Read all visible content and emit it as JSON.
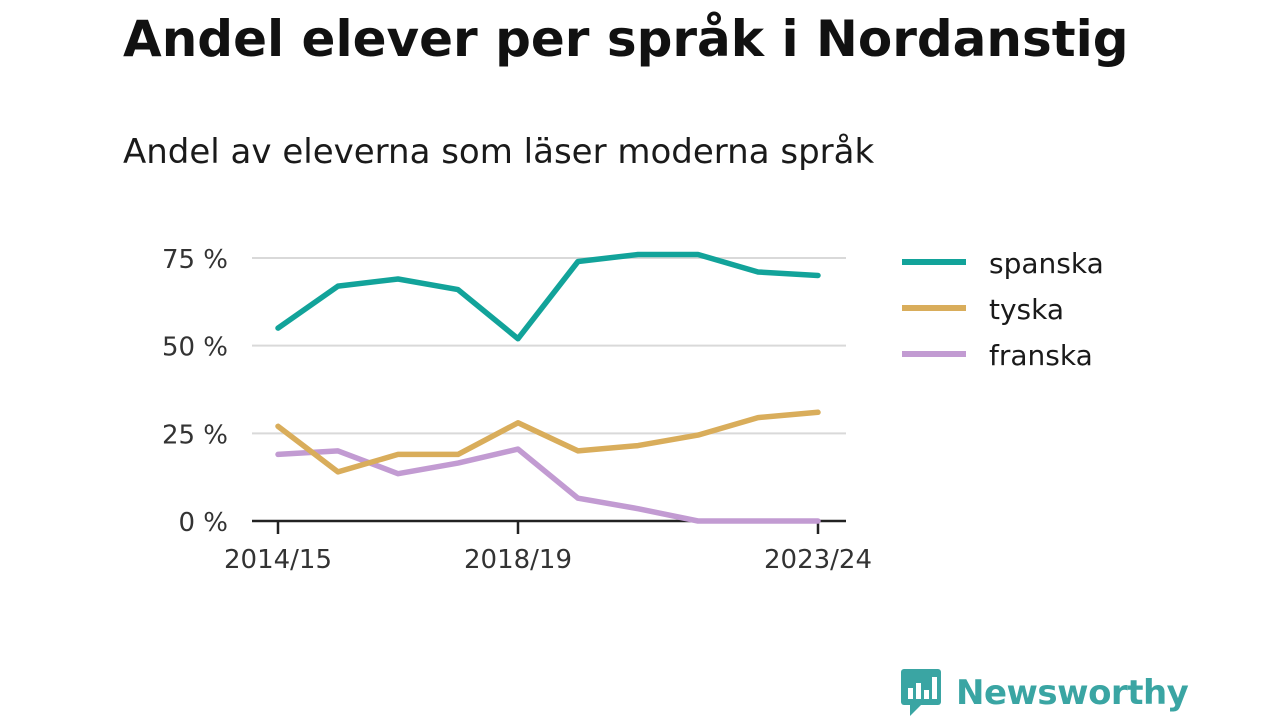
{
  "title": "Andel elever per språk i Nordanstig",
  "subtitle": "Andel av eleverna som läser moderna språk",
  "brand": {
    "name": "Newsworthy",
    "logo_icon": "bar-chart-speech-bubble-icon"
  },
  "colors": {
    "spanska": "#12a39a",
    "tyska": "#d9ad5b",
    "franska": "#c29bd2",
    "grid": "#d9d9d9",
    "axis": "#222222",
    "brand": "#3aa5a3"
  },
  "chart_data": {
    "type": "line",
    "x": [
      "2014/15",
      "2015/16",
      "2016/17",
      "2017/18",
      "2018/19",
      "2019/20",
      "2020/21",
      "2021/22",
      "2022/23",
      "2023/24"
    ],
    "x_tick_labels": [
      "2014/15",
      "2018/19",
      "2023/24"
    ],
    "y_tick_labels": [
      "0 %",
      "25 %",
      "50 %",
      "75 %"
    ],
    "y_ticks": [
      0,
      25,
      50,
      75
    ],
    "ylim": [
      0,
      75
    ],
    "grid": true,
    "legend_position": "right",
    "series": [
      {
        "name": "spanska",
        "values": [
          55,
          67,
          69,
          66,
          52,
          74,
          76,
          76,
          71,
          70
        ]
      },
      {
        "name": "tyska",
        "values": [
          27,
          14,
          19,
          19,
          28,
          20,
          21.5,
          24.5,
          29.5,
          31
        ]
      },
      {
        "name": "franska",
        "values": [
          19,
          20,
          13.5,
          16.5,
          20.5,
          6.5,
          3.5,
          0,
          0,
          0
        ]
      }
    ]
  }
}
